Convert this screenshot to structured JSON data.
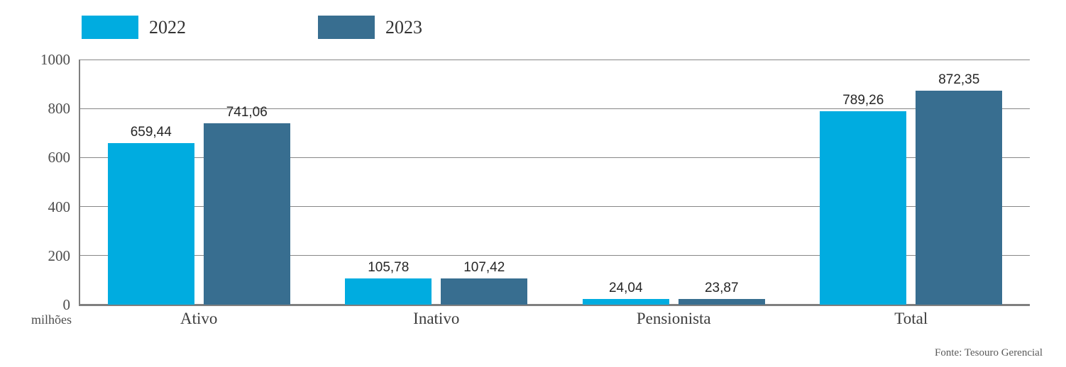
{
  "legend": [
    {
      "label": "2022",
      "color": "#00ACE0"
    },
    {
      "label": "2023",
      "color": "#386E90"
    }
  ],
  "y_axis_unit": "milhões",
  "source": "Fonte: Tesouro Gerencial",
  "colors": {
    "series_2022": "#00ACE0",
    "series_2023": "#386E90",
    "gridline": "#878787",
    "axis": "#7f7f7f",
    "text_dark": "#262626",
    "text_gray": "#4d4d4d"
  },
  "chart_data": {
    "type": "bar",
    "categories": [
      "Ativo",
      "Inativo",
      "Pensionista",
      "Total"
    ],
    "series": [
      {
        "name": "2022",
        "color": "#00ACE0",
        "values": [
          659.44,
          105.78,
          24.04,
          789.26
        ],
        "labels": [
          "659,44",
          "105,78",
          "24,04",
          "789,26"
        ]
      },
      {
        "name": "2023",
        "color": "#386E90",
        "values": [
          741.06,
          107.42,
          23.87,
          872.35
        ],
        "labels": [
          "741,06",
          "107,42",
          "23,87",
          "872,35"
        ]
      }
    ],
    "title": "",
    "xlabel": "",
    "ylabel": "milhões",
    "ylim": [
      0,
      1000
    ],
    "yticks": [
      0,
      200,
      400,
      600,
      800,
      1000
    ],
    "grid": true,
    "legend_position": "top-left"
  }
}
